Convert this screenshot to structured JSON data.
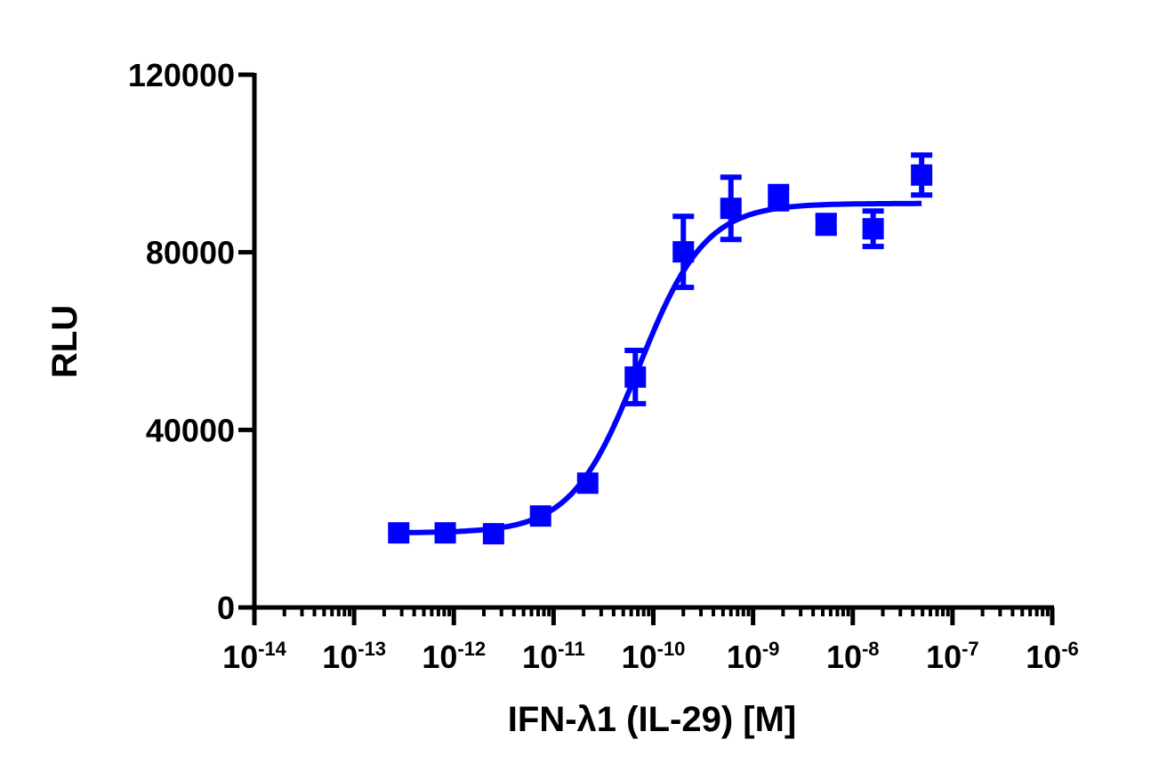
{
  "chart_data": {
    "type": "scatter",
    "title": "",
    "xlabel": "IFN-λ1 (IL-29) [M]",
    "ylabel": "RLU",
    "xscale": "log",
    "xlim": [
      1e-14,
      1e-06
    ],
    "ylim": [
      0,
      120000
    ],
    "x_tick_labels": [
      "10-14",
      "10-13",
      "10-12",
      "10-11",
      "10-10",
      "10-9",
      "10-8",
      "10-7",
      "10-6"
    ],
    "x_tick_exponents": [
      -14,
      -13,
      -12,
      -11,
      -10,
      -9,
      -8,
      -7,
      -6
    ],
    "y_ticks": [
      0,
      40000,
      80000,
      120000
    ],
    "y_tick_labels": [
      "0",
      "40000",
      "80000",
      "120000"
    ],
    "grid": false,
    "legend": null,
    "series": [
      {
        "name": "IFN-λ1 (IL-29)",
        "color": "#0000ff",
        "marker": "square",
        "fit": "4-parameter logistic",
        "x": [
          2.8e-13,
          8.2e-13,
          2.5e-12,
          7.4e-12,
          2.2e-11,
          6.6e-11,
          2e-10,
          6e-10,
          1.8e-09,
          5.4e-09,
          1.6e-08,
          4.9e-08
        ],
        "y": [
          16800,
          16800,
          16600,
          20600,
          28000,
          51900,
          80100,
          89900,
          92300,
          86300,
          85300,
          97400
        ],
        "error": [
          0,
          0,
          0,
          0,
          0,
          6000,
          8000,
          7000,
          2500,
          2000,
          4000,
          4500
        ]
      }
    ],
    "fit_params": {
      "bottom": 16800,
      "top": 91000,
      "logEC50": -10.15,
      "hill": 1.3
    }
  }
}
